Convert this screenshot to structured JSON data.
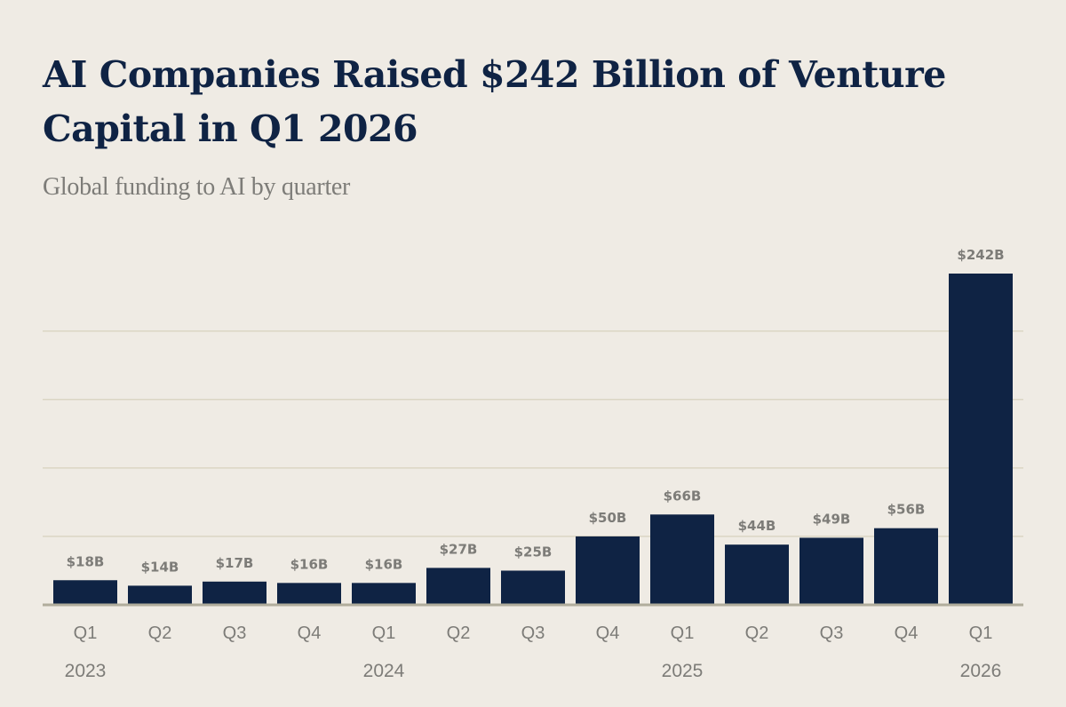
{
  "title": "AI Companies Raised $242 Billion of Venture Capital in Q1 2026",
  "subtitle": "Global funding to AI by quarter",
  "colors": {
    "background": "#efebe4",
    "bar": "#0f2344",
    "title": "#0f2344",
    "label": "#7d7c78",
    "grid": "#dbd6c4",
    "axis": "#b1ad9c"
  },
  "chart_data": {
    "type": "bar",
    "categories": [
      "Q1",
      "Q2",
      "Q3",
      "Q4",
      "Q1",
      "Q2",
      "Q3",
      "Q4",
      "Q1",
      "Q2",
      "Q3",
      "Q4",
      "Q1"
    ],
    "years": [
      {
        "label": "2023",
        "category_index": 0
      },
      {
        "label": "2024",
        "category_index": 4
      },
      {
        "label": "2025",
        "category_index": 8
      },
      {
        "label": "2026",
        "category_index": 12
      }
    ],
    "values": [
      18,
      14,
      17,
      16,
      16,
      27,
      25,
      50,
      66,
      44,
      49,
      56,
      242
    ],
    "data_labels": [
      "$18B",
      "$14B",
      "$17B",
      "$16B",
      "$16B",
      "$27B",
      "$25B",
      "$50B",
      "$66B",
      "$44B",
      "$49B",
      "$56B",
      "$242B"
    ],
    "unit": "USD billions",
    "ylim": [
      0,
      250
    ],
    "gridlines": [
      50,
      100,
      150,
      200
    ],
    "grid": true,
    "legend": "none"
  }
}
